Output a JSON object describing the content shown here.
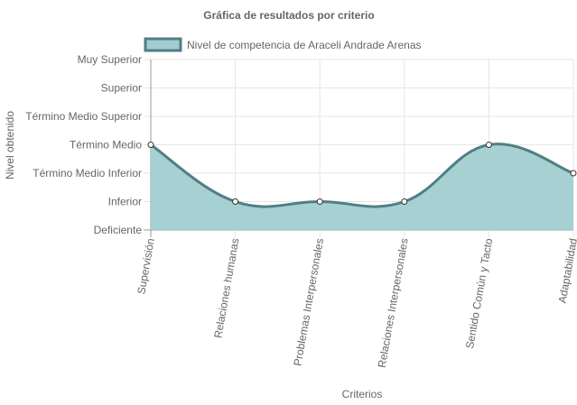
{
  "chart_data": {
    "type": "area",
    "title": "Gráfica de resultados por criterio",
    "xlabel": "Criterios",
    "ylabel": "Nivel obtenido",
    "categories": [
      "Supervisión",
      "Relaciones humanas",
      "Problemas Interpersonales",
      "Relaciones Interpersonales",
      "Sentido Común y Tacto",
      "Adaptabilidad"
    ],
    "y_levels": [
      "Deficiente",
      "Inferior",
      "Término Medio Inferior",
      "Término Medio",
      "Término Medio Superior",
      "Superior",
      "Muy Superior"
    ],
    "ylim": [
      0,
      6
    ],
    "series": [
      {
        "name": "Nivel de competencia de Araceli Andrade Arenas",
        "values": [
          3,
          1,
          1,
          1,
          3,
          2
        ]
      }
    ],
    "grid": true,
    "legend_position": "top",
    "colors": {
      "fill": "#a2cdd0",
      "line": "#507e85",
      "grid": "#e6e6e6",
      "axis": "#999999"
    }
  }
}
